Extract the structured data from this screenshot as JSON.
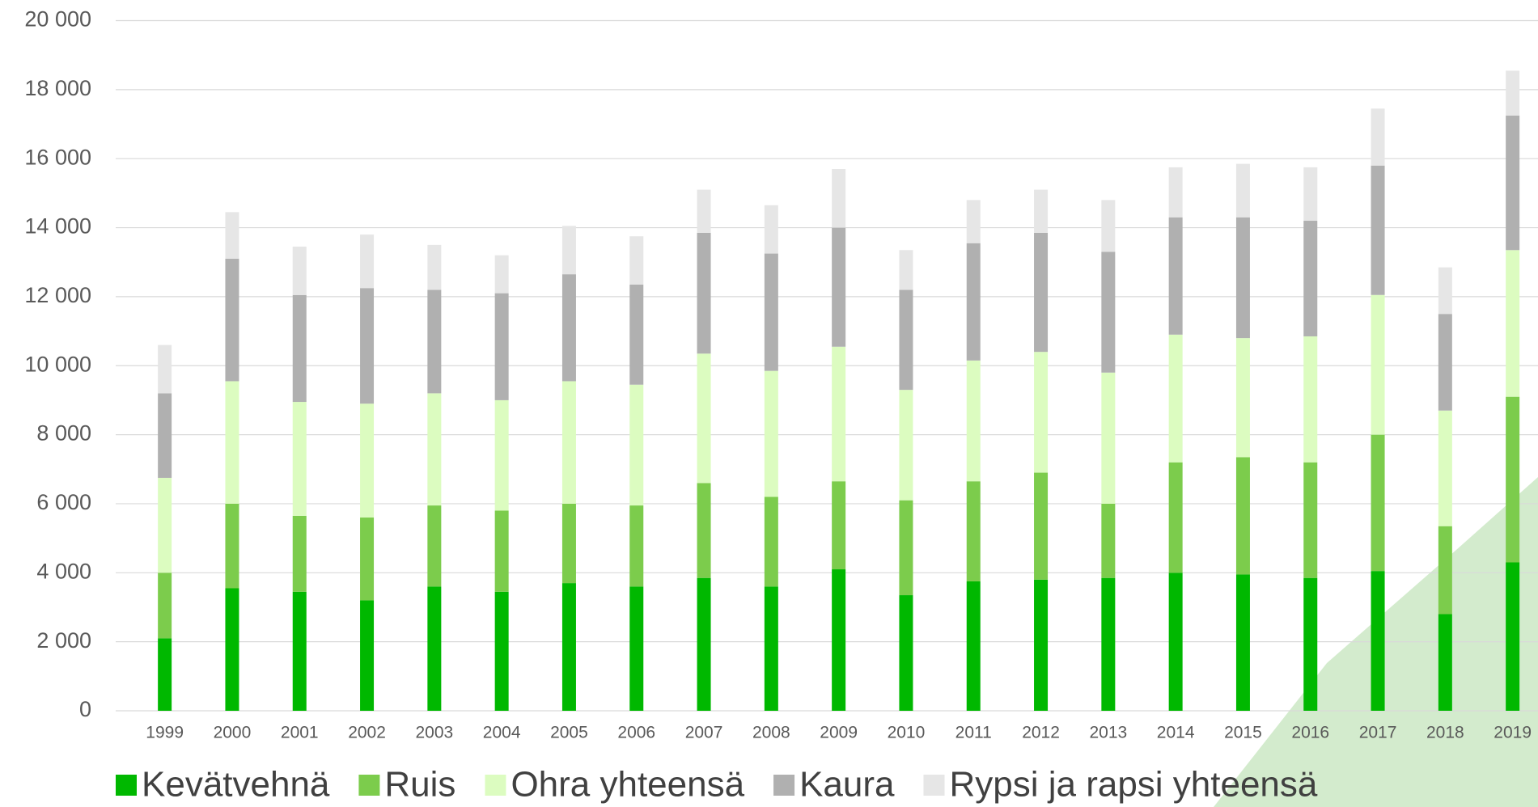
{
  "chart_data": {
    "type": "stacked_bar",
    "categories": [
      "1999",
      "2000",
      "2001",
      "2002",
      "2003",
      "2004",
      "2005",
      "2006",
      "2007",
      "2008",
      "2009",
      "2010",
      "2011",
      "2012",
      "2013",
      "2014",
      "2015",
      "2016",
      "2017",
      "2018",
      "2019"
    ],
    "series": [
      {
        "name": "Kevätvehnä",
        "color": "#00b800",
        "values": [
          2100,
          3550,
          3450,
          3200,
          3600,
          3450,
          3700,
          3600,
          3850,
          3600,
          4100,
          3350,
          3750,
          3800,
          3850,
          4000,
          3950,
          3850,
          4050,
          2800,
          4300
        ]
      },
      {
        "name": "Ruis",
        "color": "#7ccc4c",
        "values": [
          1900,
          2450,
          2200,
          2400,
          2350,
          2350,
          2300,
          2350,
          2750,
          2600,
          2550,
          2750,
          2900,
          3100,
          2150,
          3200,
          3400,
          3350,
          3950,
          2550,
          4800
        ]
      },
      {
        "name": "Ohra yhteensä",
        "color": "#dcfcc0",
        "values": [
          2750,
          3550,
          3300,
          3300,
          3250,
          3200,
          3550,
          3500,
          3750,
          3650,
          3900,
          3200,
          3500,
          3500,
          3800,
          3700,
          3450,
          3650,
          4050,
          3350,
          4250
        ]
      },
      {
        "name": "Kaura",
        "color": "#b0b0b0",
        "values": [
          2450,
          3550,
          3100,
          3350,
          3000,
          3100,
          3100,
          2900,
          3500,
          3400,
          3450,
          2900,
          3400,
          3450,
          3500,
          3400,
          3500,
          3350,
          3750,
          2800,
          3900
        ]
      },
      {
        "name": "Rypsi ja rapsi yhteensä",
        "color": "#e6e6e6",
        "values": [
          1400,
          1350,
          1400,
          1550,
          1300,
          1100,
          1400,
          1400,
          1250,
          1400,
          1700,
          1150,
          1250,
          1250,
          1500,
          1450,
          1550,
          1550,
          1650,
          1350,
          1300
        ]
      }
    ],
    "ylim": [
      0,
      20000
    ],
    "yticks": [
      0,
      {
        "value": 2000,
        "label": "2 000"
      },
      {
        "value": 4000,
        "label": "4 000"
      },
      {
        "value": 6000,
        "label": "6 000"
      },
      {
        "value": 8000,
        "label": "8 000"
      },
      {
        "value": 10000,
        "label": "10 000"
      },
      {
        "value": 12000,
        "label": "12 000"
      },
      {
        "value": 14000,
        "label": "14 000"
      },
      {
        "value": 16000,
        "label": "16 000"
      },
      {
        "value": 18000,
        "label": "18 000"
      },
      {
        "value": 20000,
        "label": "20 000"
      }
    ],
    "grid": true,
    "legend": "bottom"
  }
}
